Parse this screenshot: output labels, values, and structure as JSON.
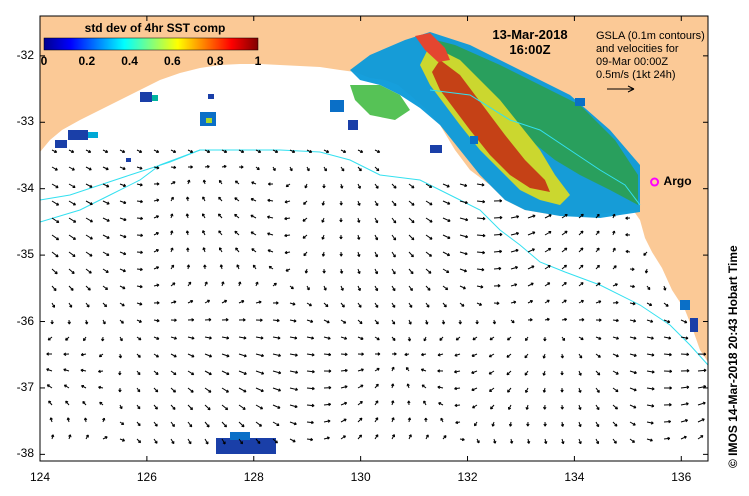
{
  "colorbar": {
    "title": "std dev of 4hr SST comp",
    "ticks": [
      "0",
      "0.2",
      "0.4",
      "0.6",
      "0.8",
      "1"
    ],
    "range": [
      0,
      1
    ]
  },
  "date_label": {
    "date": "13-Mar-2018",
    "time": "16:00Z"
  },
  "gsla_legend": {
    "line1": "GSLA (0.1m contours)",
    "line2": "and velocities for",
    "line3": "09-Mar 00:00Z",
    "line4": "0.5m/s (1kt 24h)"
  },
  "argo": {
    "label": "Argo",
    "lon": 135.5,
    "lat": -33.9,
    "color": "#ff00ff"
  },
  "credit": "©  IMOS 14-Mar-2018 20:43 Hobart Time",
  "axes": {
    "lon_range": [
      124,
      136.5
    ],
    "lat_range": [
      -38.1,
      -31.4
    ],
    "x_ticks": [
      "124",
      "126",
      "128",
      "130",
      "132",
      "134",
      "136"
    ],
    "y_ticks": [
      "-32",
      "-33",
      "-34",
      "-35",
      "-36",
      "-37",
      "-38"
    ]
  },
  "colors": {
    "land": "#fbc996",
    "contour": "#33e0f0",
    "arrow": "#000000",
    "frame": "#000000"
  }
}
